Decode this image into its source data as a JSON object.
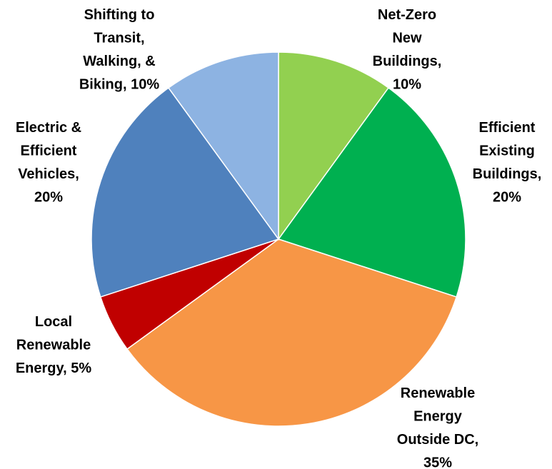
{
  "chart_data": {
    "type": "pie",
    "values": [
      10,
      20,
      35,
      5,
      20,
      10
    ],
    "value_labels": [
      "Net-Zero\nNew\nBuildings,\n10%",
      "Efficient\nExisting\nBuildings,\n20%",
      "Renewable\nEnergy\nOutside DC,\n35%",
      "Local\nRenewable\nEnergy, 5%",
      "Electric &\nEfficient\nVehicles,\n20%",
      "Shifting to\nTransit,\nWalking, &\nBiking, 10%"
    ],
    "colors": [
      "#92d050",
      "#00b050",
      "#f79646",
      "#c00000",
      "#4f81bd",
      "#8db3e2"
    ]
  }
}
